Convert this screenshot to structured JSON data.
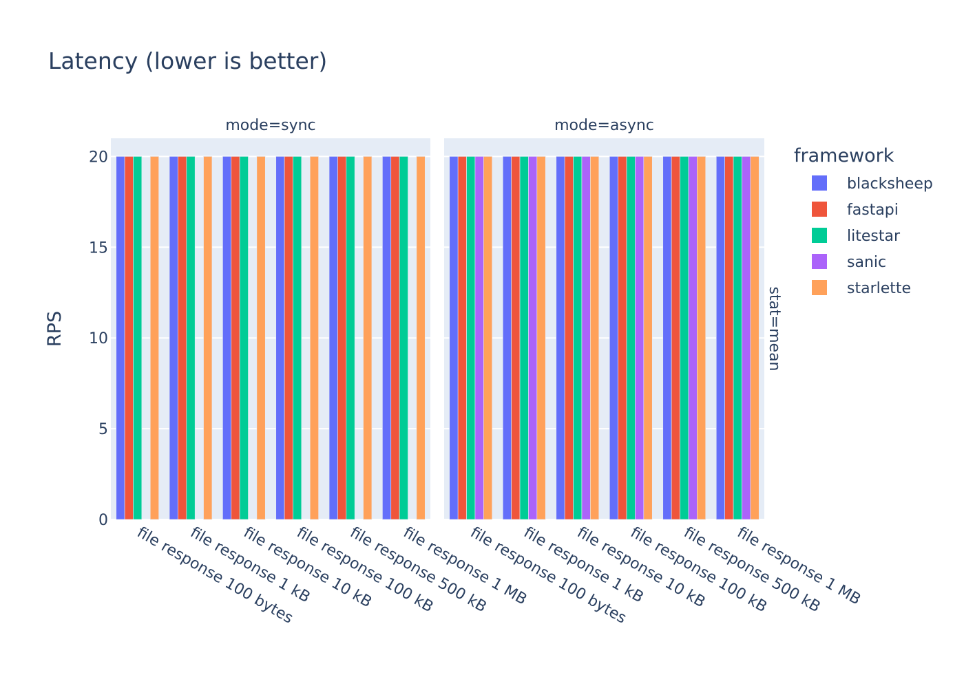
{
  "chart_data": {
    "type": "bar",
    "title": "Latency (lower is better)",
    "ylabel": "RPS",
    "xlabel": "",
    "ylim": [
      0,
      21
    ],
    "yticks": [
      0,
      5,
      10,
      15,
      20
    ],
    "grid": true,
    "row_facet_label": "stat=mean",
    "legend_title": "framework",
    "legend_position": "right",
    "categories": [
      "file response 100 bytes",
      "file response 1 kB",
      "file response 10 kB",
      "file response 100 kB",
      "file response 500 kB",
      "file response 1 MB"
    ],
    "series": [
      {
        "name": "blacksheep",
        "color": "#636efa"
      },
      {
        "name": "fastapi",
        "color": "#ef553b"
      },
      {
        "name": "litestar",
        "color": "#00cc96"
      },
      {
        "name": "sanic",
        "color": "#ab63fa"
      },
      {
        "name": "starlette",
        "color": "#ffa15a"
      }
    ],
    "facets": [
      {
        "title": "mode=sync",
        "values": {
          "blacksheep": [
            20,
            20,
            20,
            20,
            20,
            20
          ],
          "fastapi": [
            20,
            20,
            20,
            20,
            20,
            20
          ],
          "litestar": [
            20,
            20,
            20,
            20,
            20,
            20
          ],
          "sanic": [
            null,
            null,
            null,
            null,
            null,
            null
          ],
          "starlette": [
            20,
            20,
            20,
            20,
            20,
            20
          ]
        }
      },
      {
        "title": "mode=async",
        "values": {
          "blacksheep": [
            20,
            20,
            20,
            20,
            20,
            20
          ],
          "fastapi": [
            20,
            20,
            20,
            20,
            20,
            20
          ],
          "litestar": [
            20,
            20,
            20,
            20,
            20,
            20
          ],
          "sanic": [
            20,
            20,
            20,
            20,
            20,
            20
          ],
          "starlette": [
            20,
            20,
            20,
            20,
            20,
            20
          ]
        }
      }
    ]
  }
}
